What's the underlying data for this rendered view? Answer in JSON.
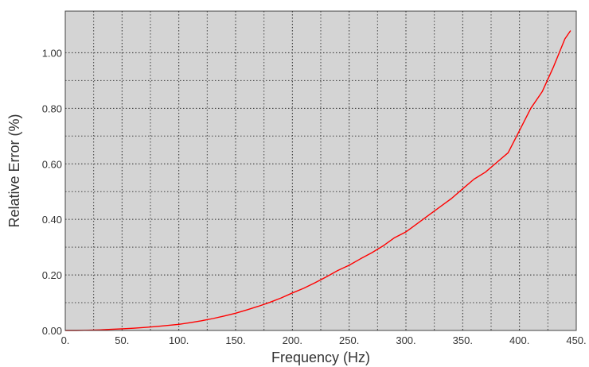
{
  "chart_data": {
    "type": "line",
    "title": "",
    "xlabel": "Frequency (Hz)",
    "ylabel": "Relative Error (%)",
    "xlim": [
      0,
      450
    ],
    "ylim": [
      0,
      1.15
    ],
    "grid": true,
    "x_ticks": [
      0,
      50,
      100,
      150,
      200,
      250,
      300,
      350,
      400,
      450
    ],
    "x_tick_labels": [
      "0.",
      "50.",
      "100.",
      "150.",
      "200.",
      "250.",
      "300.",
      "350.",
      "400.",
      "450."
    ],
    "y_ticks": [
      0,
      0.2,
      0.4,
      0.6,
      0.8,
      1.0
    ],
    "y_tick_labels": [
      "0.00",
      "0.20",
      "0.40",
      "0.60",
      "0.80",
      "1.00"
    ],
    "series": [
      {
        "color": "#ff0000",
        "x": [
          0,
          10,
          20,
          30,
          40,
          50,
          60,
          70,
          80,
          90,
          100,
          110,
          120,
          130,
          140,
          150,
          160,
          170,
          180,
          190,
          200,
          210,
          220,
          230,
          240,
          250,
          260,
          270,
          280,
          290,
          300,
          310,
          320,
          330,
          340,
          350,
          360,
          370,
          380,
          390,
          400,
          410,
          420,
          430,
          440,
          445
        ],
        "y": [
          0.0,
          0.0,
          0.001,
          0.002,
          0.004,
          0.006,
          0.008,
          0.011,
          0.014,
          0.018,
          0.022,
          0.028,
          0.035,
          0.043,
          0.052,
          0.062,
          0.074,
          0.087,
          0.101,
          0.117,
          0.135,
          0.152,
          0.172,
          0.193,
          0.216,
          0.235,
          0.258,
          0.28,
          0.305,
          0.334,
          0.355,
          0.385,
          0.415,
          0.445,
          0.475,
          0.51,
          0.545,
          0.57,
          0.605,
          0.64,
          0.72,
          0.8,
          0.86,
          0.95,
          1.05,
          1.08
        ]
      }
    ]
  },
  "style": {
    "plot_background": "#d4d4d4",
    "grid_color": "#2a2a2a",
    "line_color": "#ff0000"
  }
}
